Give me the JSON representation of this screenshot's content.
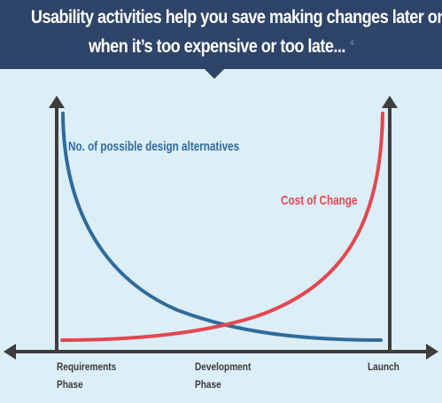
{
  "header": {
    "line1": "Usability activities help you save making changes later on",
    "line2": "when it’s too expensive or too late...",
    "footnote": "4"
  },
  "diagram": {
    "x_ticks": [
      {
        "line1": "Requirements",
        "line2": "Phase"
      },
      {
        "line1": "Development",
        "line2": "Phase"
      },
      {
        "line1": "Launch",
        "line2": ""
      }
    ],
    "curves": [
      {
        "label": "No. of possible design alternatives",
        "color": "#2f6b9a",
        "trend": "decreasing"
      },
      {
        "label": "Cost of Change",
        "color": "#e4474f",
        "trend": "increasing"
      }
    ],
    "axis_color": "#3d3d3d",
    "background": "#dceef8"
  }
}
